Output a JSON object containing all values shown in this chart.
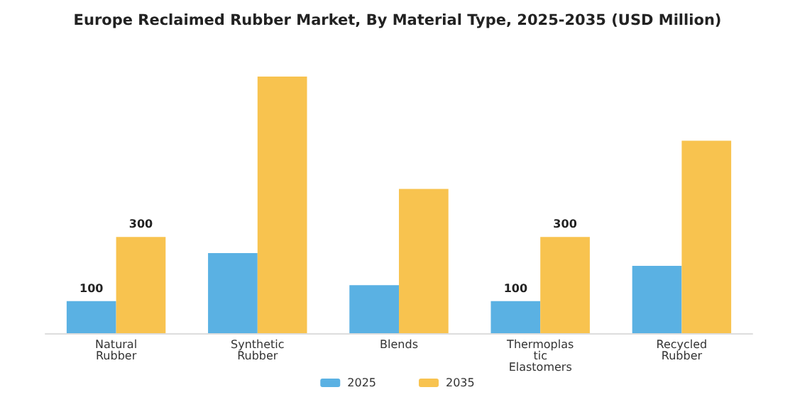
{
  "chart_data": {
    "type": "bar",
    "title": "Europe Reclaimed Rubber Market, By Material Type, 2025-2035 (USD Million)",
    "categories": [
      "Natural\nRubber",
      "Synthetic\nRubber",
      "Blends",
      "Thermoplas\ntic\nElastomers",
      "Recycled\nRubber"
    ],
    "series": [
      {
        "name": "2025",
        "color": "#5ab1e3",
        "values": [
          100,
          250,
          150,
          100,
          210
        ],
        "value_labels": [
          "100",
          null,
          null,
          "100",
          null
        ]
      },
      {
        "name": "2035",
        "color": "#f8c34f",
        "values": [
          300,
          800,
          450,
          300,
          600
        ],
        "value_labels": [
          "300",
          null,
          null,
          "300",
          null
        ]
      }
    ],
    "ylim": [
      0,
      800
    ],
    "legend": "bottom"
  }
}
